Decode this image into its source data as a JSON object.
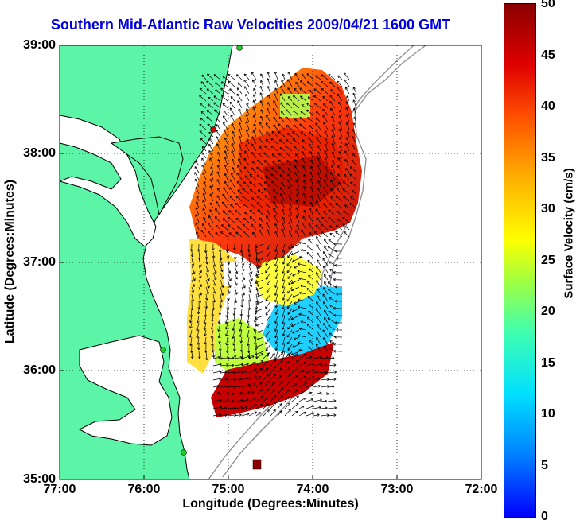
{
  "title": "Southern Mid-Atlantic Raw Velocities 2009/04/21 1600 GMT",
  "axes": {
    "xlabel": "Longitude (Degrees:Minutes)",
    "ylabel": "Latitude (Degrees:Minutes)",
    "xticks": [
      "77:00",
      "76:00",
      "75:00",
      "74:00",
      "73:00",
      "72:00"
    ],
    "yticks": [
      "39:00",
      "38:00",
      "37:00",
      "36:00",
      "35:00"
    ]
  },
  "colorbar": {
    "label": "Surface Velocity (cm/s)",
    "ticks": [
      "50",
      "45",
      "40",
      "35",
      "30",
      "25",
      "20",
      "15",
      "10",
      "5",
      "0"
    ],
    "range": [
      0,
      50
    ]
  },
  "colors": {
    "land": "#5cf5a8",
    "title": "#0000dd",
    "station_green": "#22cc22",
    "station_red": "#dd0000"
  }
}
